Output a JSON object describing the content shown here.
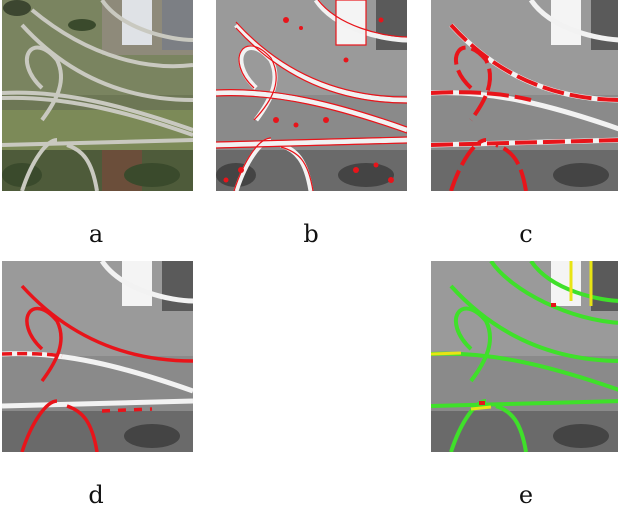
{
  "figure": {
    "panels": [
      {
        "label": "a",
        "style": "color-aerial"
      },
      {
        "label": "b",
        "style": "gray-red-edges"
      },
      {
        "label": "c",
        "style": "gray-red-roads"
      },
      {
        "label": "d",
        "style": "gray-red-roads"
      },
      {
        "label": "e",
        "style": "gray-green-yellow-roads"
      }
    ],
    "colors": {
      "red": "#e8141a",
      "green": "#3fe02a",
      "yellow": "#e8e414"
    }
  }
}
